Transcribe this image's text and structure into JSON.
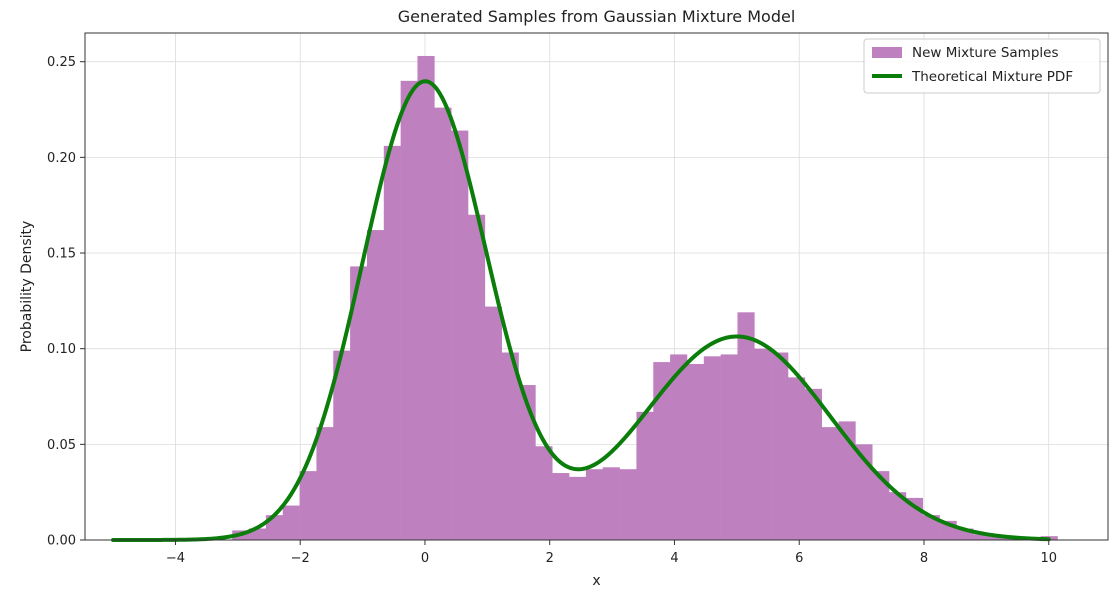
{
  "chart_data": {
    "type": "bar",
    "title": "Generated Samples from Gaussian Mixture Model",
    "xlabel": "x",
    "ylabel": "Probability Density",
    "xlim": [
      -5.45,
      10.95
    ],
    "ylim": [
      0,
      0.265
    ],
    "xticks": [
      -4,
      -2,
      0,
      2,
      4,
      6,
      8,
      10
    ],
    "xtick_labels": [
      "−4",
      "−2",
      "0",
      "2",
      "4",
      "6",
      "8",
      "10"
    ],
    "yticks": [
      0.0,
      0.05,
      0.1,
      0.15,
      0.2,
      0.25
    ],
    "ytick_labels": [
      "0.00",
      "0.05",
      "0.10",
      "0.15",
      "0.20",
      "0.25"
    ],
    "grid": true,
    "legend_position": "top-right",
    "histogram": {
      "name": "New Mixture Samples",
      "color": "#bf80bf",
      "bin_edges": [
        -3.09,
        -2.82,
        -2.55,
        -2.28,
        -2.01,
        -1.74,
        -1.47,
        -1.2,
        -0.93,
        -0.66,
        -0.39,
        -0.12,
        0.15,
        0.42,
        0.69,
        0.96,
        1.23,
        1.5,
        1.77,
        2.04,
        2.31,
        2.58,
        2.85,
        3.12,
        3.39,
        3.66,
        3.93,
        4.2,
        4.47,
        4.74,
        5.01,
        5.28,
        5.55,
        5.82,
        6.09,
        6.36,
        6.63,
        6.9,
        7.17,
        7.44,
        7.71,
        7.98,
        8.25,
        8.52,
        8.79,
        9.06,
        9.33,
        9.6,
        9.87,
        10.14
      ],
      "values": [
        0.005,
        0.006,
        0.013,
        0.018,
        0.036,
        0.059,
        0.099,
        0.143,
        0.162,
        0.206,
        0.24,
        0.253,
        0.226,
        0.214,
        0.17,
        0.122,
        0.098,
        0.081,
        0.049,
        0.035,
        0.033,
        0.037,
        0.038,
        0.037,
        0.067,
        0.093,
        0.097,
        0.092,
        0.096,
        0.097,
        0.119,
        0.1,
        0.098,
        0.085,
        0.079,
        0.059,
        0.062,
        0.05,
        0.036,
        0.025,
        0.022,
        0.013,
        0.01,
        0.006,
        0.003,
        0.002,
        0.001,
        0.001,
        0.002
      ]
    },
    "pdf": {
      "name": "Theoretical Mixture PDF",
      "color": "#0a7d0a",
      "x_range": [
        -5,
        10
      ],
      "components": [
        {
          "weight": 0.6,
          "mean": 0.0,
          "std": 1.0
        },
        {
          "weight": 0.4,
          "mean": 5.0,
          "std": 1.5
        }
      ]
    }
  }
}
